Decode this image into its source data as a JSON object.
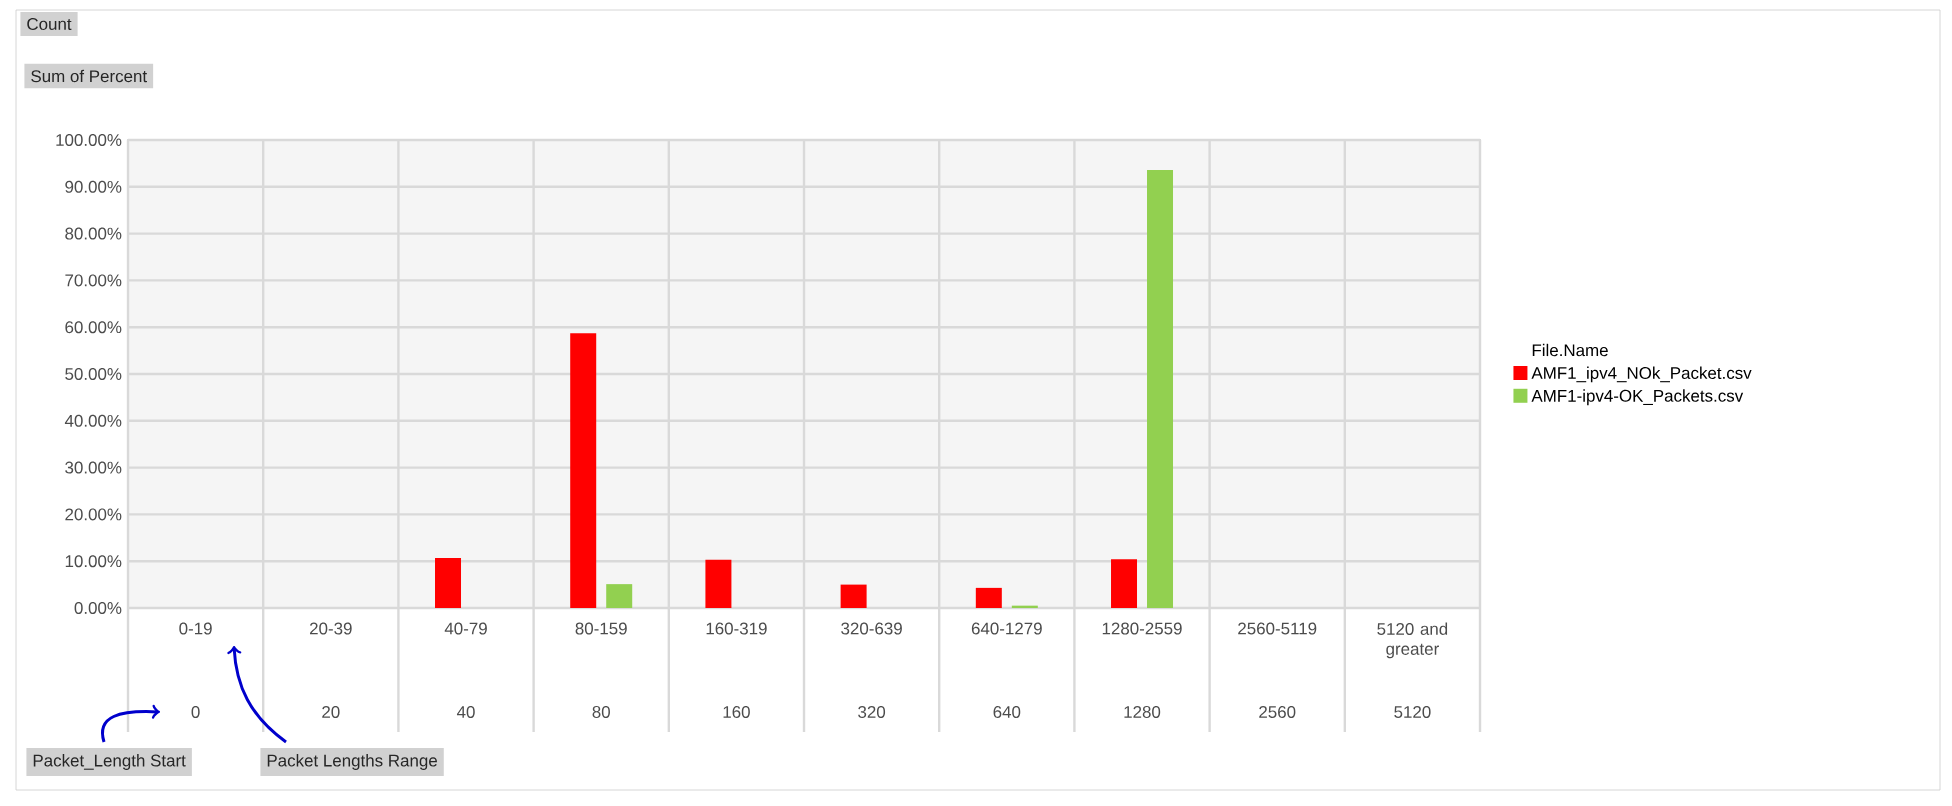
{
  "chart_data": {
    "type": "bar",
    "categories": [
      "0-19",
      "20-39",
      "40-79",
      "80-159",
      "160-319",
      "320-639",
      "640-1279",
      "1280-2559",
      "2560-5119",
      "5120 and greater"
    ],
    "series": [
      {
        "name": "AMF1_ipv4_NOk_Packet.csv",
        "color": "#ff0000",
        "values": [
          0,
          0,
          10.7,
          58.7,
          10.3,
          5.0,
          4.3,
          10.4,
          0,
          0
        ]
      },
      {
        "name": "AMF1-ipv4-OK_Packets.csv",
        "color": "#92d050",
        "values": [
          0,
          0,
          0,
          5.1,
          0,
          0,
          0.5,
          93.6,
          0,
          0
        ]
      }
    ],
    "ylim": [
      0,
      100
    ],
    "yticks": [
      {
        "value": 0,
        "label": "0.00%"
      },
      {
        "value": 10,
        "label": "10.00%"
      },
      {
        "value": 20,
        "label": "20.00%"
      },
      {
        "value": 30,
        "label": "30.00%"
      },
      {
        "value": 40,
        "label": "40.00%"
      },
      {
        "value": 50,
        "label": "50.00%"
      },
      {
        "value": 60,
        "label": "60.00%"
      },
      {
        "value": 70,
        "label": "70.00%"
      },
      {
        "value": 80,
        "label": "80.00%"
      },
      {
        "value": 90,
        "label": "90.00%"
      },
      {
        "value": 100,
        "label": "100.00%"
      }
    ],
    "grid": true,
    "legend": "right",
    "legend_title": "File.Name",
    "annotations": [
      "0",
      "20",
      "40",
      "80",
      "160",
      "320",
      "640",
      "1280",
      "2560",
      "5120",
      "Count",
      "Sum of Percent",
      "Packet_Length Start",
      "Packet Lengths Range"
    ]
  }
}
